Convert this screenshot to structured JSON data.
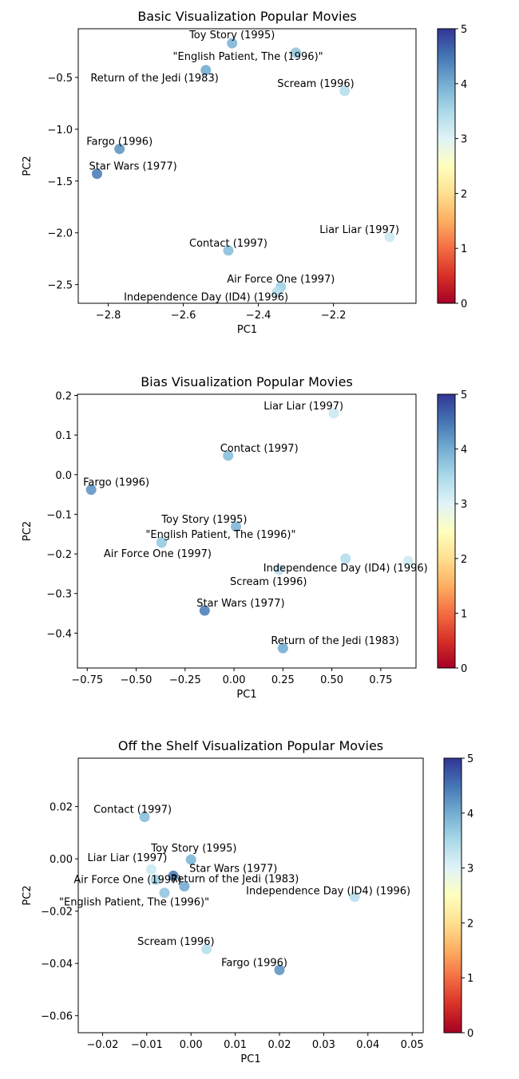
{
  "colormap": {
    "name": "RdYlBu",
    "stops": [
      "#a50026",
      "#d73027",
      "#f46d43",
      "#fdae61",
      "#fee090",
      "#ffffbf",
      "#e0f3f8",
      "#abd9e9",
      "#74add1",
      "#4575b4",
      "#313695"
    ],
    "range": [
      0,
      5
    ],
    "ticks": [
      "0",
      "1",
      "2",
      "3",
      "4",
      "5"
    ]
  },
  "chart_data": [
    {
      "type": "scatter",
      "title": "Basic Visualization Popular Movies",
      "xlabel": "PC1",
      "ylabel": "PC2",
      "xlim": [
        -2.88,
        -1.98
      ],
      "ylim": [
        -2.68,
        -0.03
      ],
      "xticks": [
        -2.8,
        -2.6,
        -2.4,
        -2.2
      ],
      "xtick_labels": [
        "−2.8",
        "−2.6",
        "−2.4",
        "−2.2"
      ],
      "yticks": [
        -0.5,
        -1.0,
        -1.5,
        -2.0,
        -2.5
      ],
      "ytick_labels": [
        "−0.5",
        "−1.0",
        "−1.5",
        "−2.0",
        "−2.5"
      ],
      "points": [
        {
          "label": "Toy Story (1995)",
          "x": -2.47,
          "y": -0.17,
          "rating": 3.9,
          "label_anchor": "middle",
          "label_dx": 0,
          "label_dy": -6
        },
        {
          "label": "\"English Patient, The (1996)\"",
          "x": -2.3,
          "y": -0.26,
          "rating": 3.7,
          "label_anchor": "middle",
          "label_dx": -60,
          "label_dy": 9
        },
        {
          "label": "Return of the Jedi (1983)",
          "x": -2.54,
          "y": -0.43,
          "rating": 4.0,
          "label_anchor": "end",
          "label_dx": 16,
          "label_dy": 14
        },
        {
          "label": "Scream (1996)",
          "x": -2.17,
          "y": -0.63,
          "rating": 3.4,
          "label_anchor": "end",
          "label_dx": 12,
          "label_dy": -5
        },
        {
          "label": "Fargo (1996)",
          "x": -2.77,
          "y": -1.19,
          "rating": 4.2,
          "label_anchor": "middle",
          "label_dx": 0,
          "label_dy": -5
        },
        {
          "label": "Star Wars (1977)",
          "x": -2.83,
          "y": -1.43,
          "rating": 4.4,
          "label_anchor": "start",
          "label_dx": -10,
          "label_dy": -5
        },
        {
          "label": "Liar Liar (1997)",
          "x": -2.05,
          "y": -2.04,
          "rating": 3.2,
          "label_anchor": "end",
          "label_dx": 12,
          "label_dy": -5
        },
        {
          "label": "Contact (1997)",
          "x": -2.48,
          "y": -2.17,
          "rating": 3.8,
          "label_anchor": "middle",
          "label_dx": 0,
          "label_dy": -5
        },
        {
          "label": "Air Force One (1997)",
          "x": -2.34,
          "y": -2.52,
          "rating": 3.6,
          "label_anchor": "middle",
          "label_dx": 0,
          "label_dy": -5
        },
        {
          "label": "Independence Day (ID4) (1996)",
          "x": -2.35,
          "y": -2.57,
          "rating": 3.4,
          "label_anchor": "end",
          "label_dx": 14,
          "label_dy": 11
        }
      ]
    },
    {
      "type": "scatter",
      "title": "Bias Visualization Popular Movies",
      "xlabel": "PC1",
      "ylabel": "PC2",
      "xlim": [
        -0.8,
        0.93
      ],
      "ylim": [
        -0.488,
        0.203
      ],
      "xticks": [
        -0.75,
        -0.5,
        -0.25,
        0.0,
        0.25,
        0.5,
        0.75
      ],
      "xtick_labels": [
        "−0.75",
        "−0.50",
        "−0.25",
        "0.00",
        "0.25",
        "0.50",
        "0.75"
      ],
      "yticks": [
        0.2,
        0.1,
        0.0,
        -0.1,
        -0.2,
        -0.3,
        -0.4
      ],
      "ytick_labels": [
        "0.2",
        "0.1",
        "0.0",
        "−0.1",
        "−0.2",
        "−0.3",
        "−0.4"
      ],
      "points": [
        {
          "label": "Liar Liar (1997)",
          "x": 0.51,
          "y": 0.155,
          "rating": 3.2,
          "label_anchor": "end",
          "label_dx": 12,
          "label_dy": -5
        },
        {
          "label": "Contact (1997)",
          "x": -0.03,
          "y": 0.048,
          "rating": 3.8,
          "label_anchor": "start",
          "label_dx": -10,
          "label_dy": -5
        },
        {
          "label": "Fargo (1996)",
          "x": -0.73,
          "y": -0.038,
          "rating": 4.2,
          "label_anchor": "start",
          "label_dx": -10,
          "label_dy": -5
        },
        {
          "label": "Toy Story (1995)",
          "x": 0.01,
          "y": -0.131,
          "rating": 3.9,
          "label_anchor": "end",
          "label_dx": 14,
          "label_dy": -5
        },
        {
          "label": "\"English Patient, The (1996)\"",
          "x": -0.37,
          "y": -0.17,
          "rating": 3.7,
          "label_anchor": "start",
          "label_dx": -20,
          "label_dy": -5
        },
        {
          "label": "Air Force One (1997)",
          "x": -0.37,
          "y": -0.172,
          "rating": 3.6,
          "label_anchor": "middle",
          "label_dx": -5,
          "label_dy": 18
        },
        {
          "label": "Independence Day (ID4) (1996)",
          "x": 0.57,
          "y": -0.212,
          "rating": 3.4,
          "label_anchor": "middle",
          "label_dx": 0,
          "label_dy": 16
        },
        {
          "label": "Scream (1996)",
          "x": 0.23,
          "y": -0.24,
          "rating": 3.4,
          "label_anchor": "end",
          "label_dx": 35,
          "label_dy": 19
        },
        {
          "label": "Star Wars (1977)",
          "x": -0.15,
          "y": -0.343,
          "rating": 4.4,
          "label_anchor": "start",
          "label_dx": -10,
          "label_dy": -5
        },
        {
          "label": "Return of the Jedi (1983)",
          "x": 0.25,
          "y": -0.438,
          "rating": 4.0,
          "label_anchor": "start",
          "label_dx": -15,
          "label_dy": -5
        },
        {
          "label": "",
          "x": 0.89,
          "y": -0.218,
          "rating": 3.2,
          "label_anchor": "middle",
          "label_dx": 0,
          "label_dy": 0
        }
      ]
    },
    {
      "type": "scatter",
      "title": "Off the Shelf Visualization Popular Movies",
      "xlabel": "PC1",
      "ylabel": "PC2",
      "xlim": [
        -0.0255,
        0.0525
      ],
      "ylim": [
        -0.0665,
        0.0385
      ],
      "xticks": [
        -0.02,
        -0.01,
        0.0,
        0.01,
        0.02,
        0.03,
        0.04,
        0.05
      ],
      "xtick_labels": [
        "−0.02",
        "−0.01",
        "0.00",
        "0.01",
        "0.02",
        "0.03",
        "0.04",
        "0.05"
      ],
      "yticks": [
        0.02,
        0.0,
        -0.02,
        -0.04,
        -0.06
      ],
      "ytick_labels": [
        "0.02",
        "0.00",
        "−0.02",
        "−0.04",
        "−0.06"
      ],
      "points": [
        {
          "label": "Contact (1997)",
          "x": -0.0105,
          "y": 0.016,
          "rating": 3.8,
          "label_anchor": "middle",
          "label_dx": -15,
          "label_dy": -5
        },
        {
          "label": "Toy Story (1995)",
          "x": 0.0,
          "y": -0.0003,
          "rating": 3.9,
          "label_anchor": "start",
          "label_dx": -50,
          "label_dy": -10
        },
        {
          "label": "Liar Liar (1997)",
          "x": -0.009,
          "y": -0.004,
          "rating": 3.2,
          "label_anchor": "end",
          "label_dx": 20,
          "label_dy": -10
        },
        {
          "label": "Star Wars (1977)",
          "x": -0.004,
          "y": -0.0065,
          "rating": 4.4,
          "label_anchor": "start",
          "label_dx": 20,
          "label_dy": -5
        },
        {
          "label": "Air Force One (1997)",
          "x": -0.008,
          "y": -0.008,
          "rating": 3.6,
          "label_anchor": "middle",
          "label_dx": -35,
          "label_dy": 4
        },
        {
          "label": "Return of the Jedi (1983)",
          "x": -0.0015,
          "y": -0.0105,
          "rating": 4.0,
          "label_anchor": "start",
          "label_dx": -17,
          "label_dy": -5
        },
        {
          "label": "Independence Day (ID4) (1996)",
          "x": 0.037,
          "y": -0.0145,
          "rating": 3.4,
          "label_anchor": "end",
          "label_dx": 70,
          "label_dy": -3
        },
        {
          "label": "\"English Patient, The (1996)\"",
          "x": -0.006,
          "y": -0.013,
          "rating": 3.7,
          "label_anchor": "start",
          "label_dx": -132,
          "label_dy": 16
        },
        {
          "label": "Scream (1996)",
          "x": 0.0035,
          "y": -0.0345,
          "rating": 3.4,
          "label_anchor": "end",
          "label_dx": 10,
          "label_dy": -5
        },
        {
          "label": "Fargo (1996)",
          "x": 0.02,
          "y": -0.0425,
          "rating": 4.2,
          "label_anchor": "end",
          "label_dx": 10,
          "label_dy": -5
        }
      ]
    }
  ]
}
